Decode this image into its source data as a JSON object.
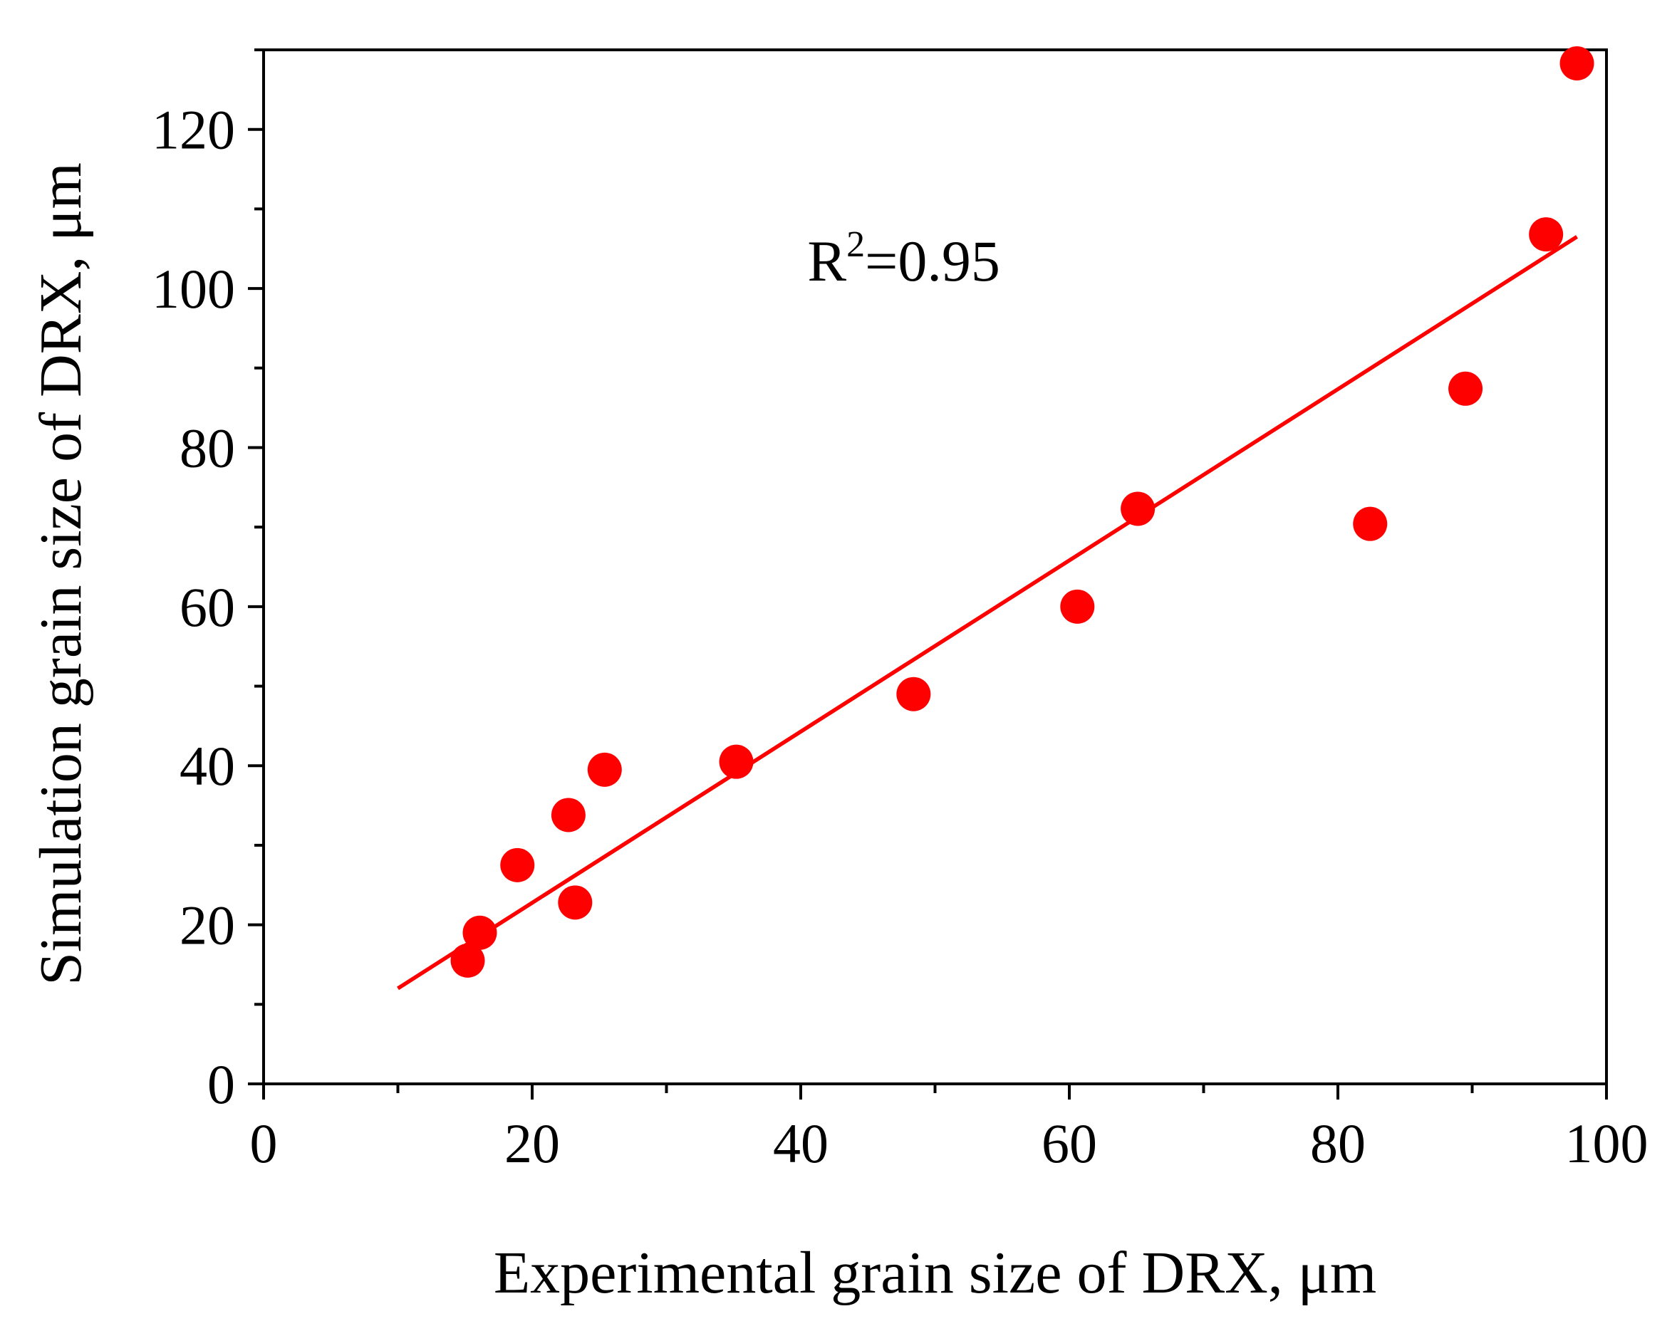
{
  "chart_data": {
    "type": "scatter",
    "title": "",
    "xlabel": "Experimental grain size of DRX, μm",
    "ylabel": "Simulation grain size of DRX, μm",
    "xlim": [
      0,
      100
    ],
    "ylim": [
      0,
      130
    ],
    "x_ticks": [
      0,
      20,
      40,
      60,
      80,
      100
    ],
    "x_tick_labels": [
      "0",
      "20",
      "40",
      "60",
      "80",
      "100"
    ],
    "y_ticks": [
      0,
      20,
      40,
      60,
      80,
      100,
      120
    ],
    "y_tick_labels": [
      "0",
      "20",
      "40",
      "60",
      "80",
      "100",
      "120"
    ],
    "grid": false,
    "series": [
      {
        "name": "data",
        "type": "scatter",
        "color": "#ff0000",
        "x": [
          15.2,
          16.1,
          18.9,
          22.7,
          23.2,
          25.4,
          35.2,
          48.4,
          60.6,
          65.1,
          82.4,
          89.5,
          95.5,
          97.8
        ],
        "y": [
          15.5,
          19.0,
          27.5,
          33.8,
          22.8,
          39.5,
          40.5,
          49.0,
          60.0,
          72.3,
          70.4,
          87.4,
          106.8,
          128.3
        ]
      },
      {
        "name": "fit",
        "type": "line",
        "color": "#ff0000",
        "x": [
          10,
          97.8
        ],
        "y": [
          12.0,
          106.5
        ]
      }
    ],
    "annotations": [
      {
        "text_main": "R",
        "text_sup": "2",
        "text_rest": "=0.95",
        "x": 40.5,
        "y": 101
      }
    ]
  }
}
